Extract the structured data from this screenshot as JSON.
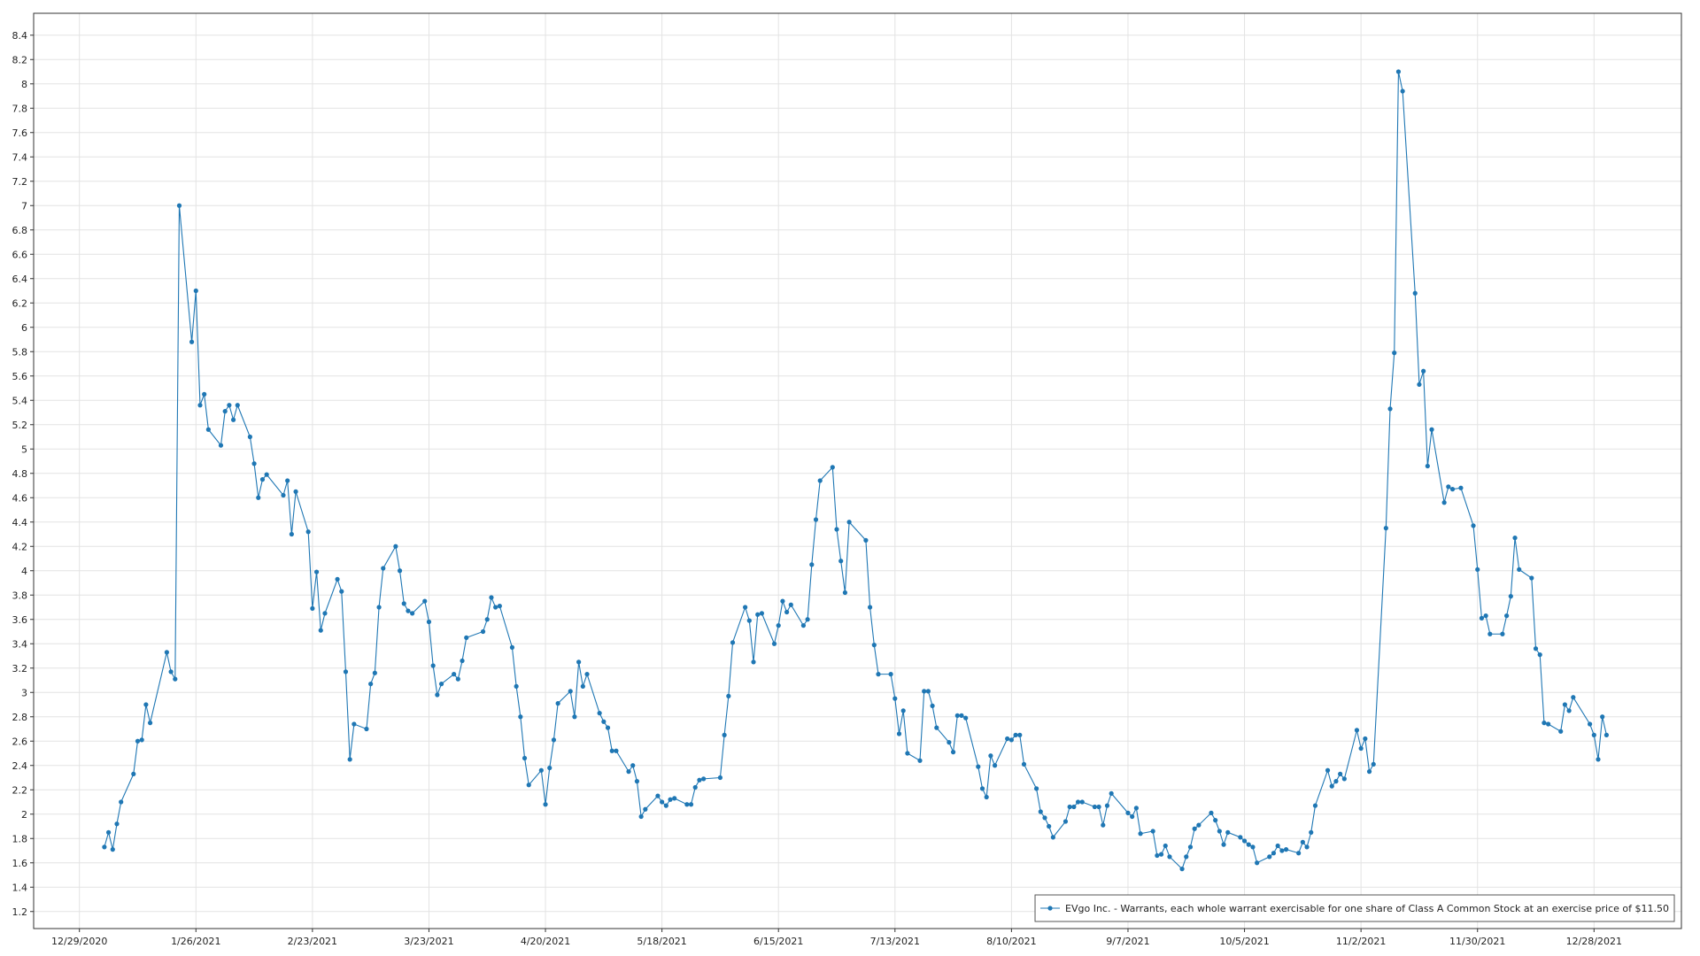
{
  "chart_data": {
    "type": "line",
    "x": [
      "1/4/2021",
      "1/5/2021",
      "1/6/2021",
      "1/7/2021",
      "1/8/2021",
      "1/11/2021",
      "1/12/2021",
      "1/13/2021",
      "1/14/2021",
      "1/15/2021",
      "1/19/2021",
      "1/20/2021",
      "1/21/2021",
      "1/22/2021",
      "1/25/2021",
      "1/26/2021",
      "1/27/2021",
      "1/28/2021",
      "1/29/2021",
      "2/1/2021",
      "2/2/2021",
      "2/3/2021",
      "2/4/2021",
      "2/5/2021",
      "2/8/2021",
      "2/9/2021",
      "2/10/2021",
      "2/11/2021",
      "2/12/2021",
      "2/16/2021",
      "2/17/2021",
      "2/18/2021",
      "2/19/2021",
      "2/22/2021",
      "2/23/2021",
      "2/24/2021",
      "2/25/2021",
      "2/26/2021",
      "3/1/2021",
      "3/2/2021",
      "3/3/2021",
      "3/4/2021",
      "3/5/2021",
      "3/8/2021",
      "3/9/2021",
      "3/10/2021",
      "3/11/2021",
      "3/12/2021",
      "3/15/2021",
      "3/16/2021",
      "3/17/2021",
      "3/18/2021",
      "3/19/2021",
      "3/22/2021",
      "3/23/2021",
      "3/24/2021",
      "3/25/2021",
      "3/26/2021",
      "3/29/2021",
      "3/30/2021",
      "3/31/2021",
      "4/1/2021",
      "4/5/2021",
      "4/6/2021",
      "4/7/2021",
      "4/8/2021",
      "4/9/2021",
      "4/12/2021",
      "4/13/2021",
      "4/14/2021",
      "4/15/2021",
      "4/16/2021",
      "4/19/2021",
      "4/20/2021",
      "4/21/2021",
      "4/22/2021",
      "4/23/2021",
      "4/26/2021",
      "4/27/2021",
      "4/28/2021",
      "4/29/2021",
      "4/30/2021",
      "5/3/2021",
      "5/4/2021",
      "5/5/2021",
      "5/6/2021",
      "5/7/2021",
      "5/10/2021",
      "5/11/2021",
      "5/12/2021",
      "5/13/2021",
      "5/14/2021",
      "5/17/2021",
      "5/18/2021",
      "5/19/2021",
      "5/20/2021",
      "5/21/2021",
      "5/24/2021",
      "5/25/2021",
      "5/26/2021",
      "5/27/2021",
      "5/28/2021",
      "6/1/2021",
      "6/2/2021",
      "6/3/2021",
      "6/4/2021",
      "6/7/2021",
      "6/8/2021",
      "6/9/2021",
      "6/10/2021",
      "6/11/2021",
      "6/14/2021",
      "6/15/2021",
      "6/16/2021",
      "6/17/2021",
      "6/18/2021",
      "6/21/2021",
      "6/22/2021",
      "6/23/2021",
      "6/24/2021",
      "6/25/2021",
      "6/28/2021",
      "6/29/2021",
      "6/30/2021",
      "7/1/2021",
      "7/2/2021",
      "7/6/2021",
      "7/7/2021",
      "7/8/2021",
      "7/9/2021",
      "7/12/2021",
      "7/13/2021",
      "7/14/2021",
      "7/15/2021",
      "7/16/2021",
      "7/19/2021",
      "7/20/2021",
      "7/21/2021",
      "7/22/2021",
      "7/23/2021",
      "7/26/2021",
      "7/27/2021",
      "7/28/2021",
      "7/29/2021",
      "7/30/2021",
      "8/2/2021",
      "8/3/2021",
      "8/4/2021",
      "8/5/2021",
      "8/6/2021",
      "8/9/2021",
      "8/10/2021",
      "8/11/2021",
      "8/12/2021",
      "8/13/2021",
      "8/16/2021",
      "8/17/2021",
      "8/18/2021",
      "8/19/2021",
      "8/20/2021",
      "8/23/2021",
      "8/24/2021",
      "8/25/2021",
      "8/26/2021",
      "8/27/2021",
      "8/30/2021",
      "8/31/2021",
      "9/1/2021",
      "9/2/2021",
      "9/3/2021",
      "9/7/2021",
      "9/8/2021",
      "9/9/2021",
      "9/10/2021",
      "9/13/2021",
      "9/14/2021",
      "9/15/2021",
      "9/16/2021",
      "9/17/2021",
      "9/20/2021",
      "9/21/2021",
      "9/22/2021",
      "9/23/2021",
      "9/24/2021",
      "9/27/2021",
      "9/28/2021",
      "9/29/2021",
      "9/30/2021",
      "10/1/2021",
      "10/4/2021",
      "10/5/2021",
      "10/6/2021",
      "10/7/2021",
      "10/8/2021",
      "10/11/2021",
      "10/12/2021",
      "10/13/2021",
      "10/14/2021",
      "10/15/2021",
      "10/18/2021",
      "10/19/2021",
      "10/20/2021",
      "10/21/2021",
      "10/22/2021",
      "10/25/2021",
      "10/26/2021",
      "10/27/2021",
      "10/28/2021",
      "10/29/2021",
      "11/1/2021",
      "11/2/2021",
      "11/3/2021",
      "11/4/2021",
      "11/5/2021",
      "11/8/2021",
      "11/9/2021",
      "11/10/2021",
      "11/11/2021",
      "11/12/2021",
      "11/15/2021",
      "11/16/2021",
      "11/17/2021",
      "11/18/2021",
      "11/19/2021",
      "11/22/2021",
      "11/23/2021",
      "11/24/2021",
      "11/26/2021",
      "11/29/2021",
      "11/30/2021",
      "12/1/2021",
      "12/2/2021",
      "12/3/2021",
      "12/6/2021",
      "12/7/2021",
      "12/8/2021",
      "12/9/2021",
      "12/10/2021",
      "12/13/2021",
      "12/14/2021",
      "12/15/2021",
      "12/16/2021",
      "12/17/2021",
      "12/20/2021",
      "12/21/2021",
      "12/22/2021",
      "12/23/2021",
      "12/27/2021",
      "12/28/2021",
      "12/29/2021",
      "12/30/2021",
      "12/31/2021"
    ],
    "series": [
      {
        "name": "EVgo Inc. - Warrants, each whole warrant exercisable for one share of Class A Common Stock at an exercise price of $11.50",
        "color": "#1f77b4",
        "values": [
          1.73,
          1.85,
          1.71,
          1.92,
          2.1,
          2.33,
          2.6,
          2.61,
          2.9,
          2.75,
          3.33,
          3.17,
          3.11,
          7.0,
          5.88,
          6.3,
          5.36,
          5.45,
          5.16,
          5.03,
          5.31,
          5.36,
          5.24,
          5.36,
          5.1,
          4.88,
          4.6,
          4.75,
          4.79,
          4.62,
          4.74,
          4.3,
          4.65,
          4.32,
          3.69,
          3.99,
          3.51,
          3.65,
          3.93,
          3.83,
          3.17,
          2.45,
          2.74,
          2.7,
          3.07,
          3.16,
          3.7,
          4.02,
          4.2,
          4.0,
          3.73,
          3.67,
          3.65,
          3.75,
          3.58,
          3.22,
          2.98,
          3.07,
          3.15,
          3.11,
          3.26,
          3.45,
          3.5,
          3.6,
          3.78,
          3.7,
          3.71,
          3.37,
          3.05,
          2.8,
          2.46,
          2.24,
          2.36,
          2.08,
          2.38,
          2.61,
          2.91,
          3.01,
          2.8,
          3.25,
          3.05,
          3.15,
          2.83,
          2.76,
          2.71,
          2.52,
          2.52,
          2.35,
          2.4,
          2.27,
          1.98,
          2.04,
          2.15,
          2.1,
          2.07,
          2.12,
          2.13,
          2.08,
          2.08,
          2.22,
          2.28,
          2.29,
          2.3,
          2.65,
          2.97,
          3.41,
          3.7,
          3.59,
          3.25,
          3.64,
          3.65,
          3.4,
          3.55,
          3.75,
          3.66,
          3.72,
          3.55,
          3.6,
          4.05,
          4.42,
          4.74,
          4.85,
          4.34,
          4.08,
          3.82,
          4.4,
          4.25,
          3.7,
          3.39,
          3.15,
          3.15,
          2.95,
          2.66,
          2.85,
          2.5,
          2.44,
          3.01,
          3.01,
          2.89,
          2.71,
          2.59,
          2.51,
          2.81,
          2.81,
          2.79,
          2.39,
          2.21,
          2.14,
          2.48,
          2.4,
          2.62,
          2.61,
          2.65,
          2.65,
          2.41,
          2.21,
          2.02,
          1.97,
          1.9,
          1.81,
          1.94,
          2.06,
          2.06,
          2.1,
          2.1,
          2.06,
          2.06,
          1.91,
          2.07,
          2.17,
          2.01,
          1.98,
          2.05,
          1.84,
          1.86,
          1.66,
          1.67,
          1.74,
          1.65,
          1.55,
          1.65,
          1.73,
          1.88,
          1.91,
          2.01,
          1.95,
          1.86,
          1.75,
          1.85,
          1.81,
          1.78,
          1.75,
          1.73,
          1.6,
          1.65,
          1.68,
          1.74,
          1.7,
          1.71,
          1.68,
          1.77,
          1.73,
          1.85,
          2.07,
          2.36,
          2.23,
          2.27,
          2.33,
          2.29,
          2.69,
          2.54,
          2.62,
          2.35,
          2.41,
          4.35,
          5.33,
          5.79,
          8.1,
          7.94,
          6.28,
          5.53,
          5.64,
          4.86,
          5.16,
          4.56,
          4.69,
          4.67,
          4.68,
          4.37,
          4.01,
          3.61,
          3.63,
          3.48,
          3.48,
          3.63,
          3.79,
          4.27,
          4.01,
          3.94,
          3.36,
          3.31,
          2.75,
          2.74,
          2.68,
          2.9,
          2.85,
          2.96,
          2.74,
          2.65,
          2.45,
          2.8,
          2.65
        ]
      }
    ],
    "xlim": [
      "12/18/2020",
      "1/18/2022"
    ],
    "xticks": [
      "12/29/2020",
      "1/26/2021",
      "2/23/2021",
      "3/23/2021",
      "4/20/2021",
      "5/18/2021",
      "6/15/2021",
      "7/13/2021",
      "8/10/2021",
      "9/7/2021",
      "10/5/2021",
      "11/2/2021",
      "11/30/2021",
      "12/28/2021"
    ],
    "ylim": [
      1.06,
      8.58
    ],
    "yticks": [
      1.2,
      1.4,
      1.6,
      1.8,
      2,
      2.2,
      2.4,
      2.6,
      2.8,
      3,
      3.2,
      3.4,
      3.6,
      3.8,
      4,
      4.2,
      4.4,
      4.6,
      4.8,
      5,
      5.2,
      5.4,
      5.6,
      5.8,
      6,
      6.2,
      6.4,
      6.6,
      6.8,
      7,
      7.2,
      7.4,
      7.6,
      7.8,
      8,
      8.2,
      8.4
    ],
    "grid": true,
    "legend": "lower right"
  }
}
